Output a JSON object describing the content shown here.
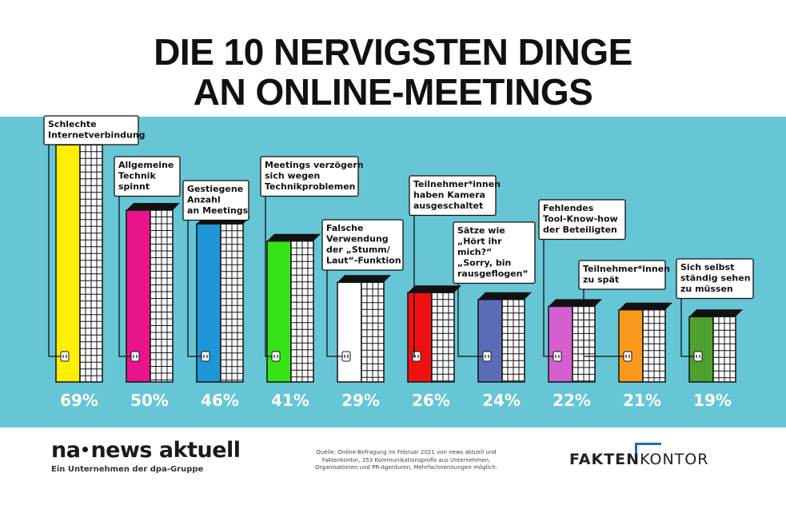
{
  "title_lines": [
    "DIE 10 NERVIGSTEN DINGE",
    "AN ONLINE-MEETINGS"
  ],
  "colors": {
    "background_band": "#66c6d5"
  },
  "chart_data": {
    "type": "bar",
    "title": "DIE 10 NERVIGSTEN DINGE AN ONLINE-MEETINGS",
    "unit": "%",
    "ylim": [
      0,
      100
    ],
    "grid": false,
    "categories": [
      [
        "Schlechte",
        "Internetverbindung"
      ],
      [
        "Allgemeine",
        "Technik",
        "spinnt"
      ],
      [
        "Gestiegene",
        "Anzahl",
        "an Meetings"
      ],
      [
        "Meetings verzögern",
        "sich wegen",
        "Technikproblemen"
      ],
      [
        "Falsche",
        "Verwendung",
        "der „Stumm/",
        "Laut“-Funktion"
      ],
      [
        "Teilnehmer*innen",
        "haben Kamera",
        "ausgeschaltet"
      ],
      [
        "Sätze wie",
        "„Hört ihr",
        "mich?“",
        "„Sorry, bin",
        "rausgeflogen“"
      ],
      [
        "Fehlendes",
        "Tool-Know-how",
        "der Beteiligten"
      ],
      [
        "Teilnehmer*innen",
        "zu spät"
      ],
      [
        "Sich selbst",
        "ständig sehen",
        "zu müssen"
      ]
    ],
    "values": [
      69,
      50,
      46,
      41,
      29,
      26,
      24,
      22,
      21,
      19
    ],
    "value_labels": [
      "69%",
      "50%",
      "46%",
      "41%",
      "29%",
      "26%",
      "24%",
      "22%",
      "21%",
      "19%"
    ],
    "bar_colors": [
      "#ffef00",
      "#e8148c",
      "#1f96d8",
      "#35e317",
      "#ffffff",
      "#ee1111",
      "#5c6bb8",
      "#d55fcf",
      "#f99a1c",
      "#4ea12e"
    ]
  },
  "footer": {
    "brand_left_parts": [
      "na",
      "news aktuell"
    ],
    "brand_left_tagline": "Ein Unternehmen der dpa-Gruppe",
    "source_lines": [
      "Quelle: Online-Befragung im Februar 2021 von news aktuell und",
      "Faktenkontor, 353 Kommunikationsprofis aus Unternehmen,",
      "Organisationen und PR-Agenturen, Mehrfachnennungen möglich."
    ],
    "brand_right_parts": [
      "FAKTEN",
      "KONTOR"
    ]
  }
}
